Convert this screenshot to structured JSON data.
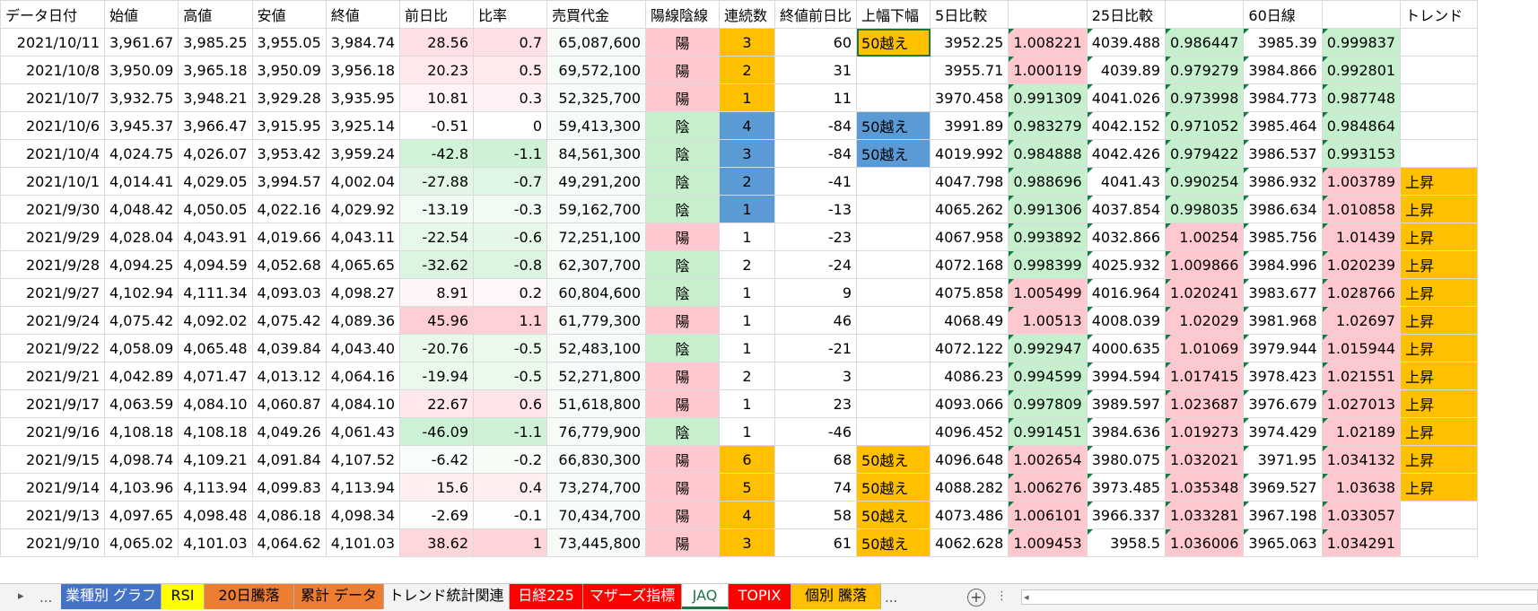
{
  "columns": [
    "データ日付",
    "始値",
    "高値",
    "安値",
    "終値",
    "前日比",
    "比率",
    "売買代金",
    "陽線陰線",
    "連続数",
    "終値前日比",
    "上幅下幅",
    "5日比較",
    "",
    "25日比較",
    "",
    "60日線",
    "",
    "トレンド"
  ],
  "rows": [
    {
      "date": "2021/10/11",
      "open": "3,961.67",
      "high": "3,985.25",
      "low": "3,955.05",
      "close": "3,984.74",
      "diff": "28.56",
      "ratio": "0.7",
      "value": "65,087,600",
      "yy": "陽",
      "streak": "3",
      "cdiff": "60",
      "range": "50越え",
      "d5": "3952.25",
      "r5": "1.008221",
      "d25": "4039.488",
      "r25": "0.986447",
      "d60": "3985.39",
      "r60": "0.999837",
      "trend": ""
    },
    {
      "date": "2021/10/8",
      "open": "3,950.09",
      "high": "3,965.18",
      "low": "3,950.09",
      "close": "3,956.18",
      "diff": "20.23",
      "ratio": "0.5",
      "value": "69,572,100",
      "yy": "陽",
      "streak": "2",
      "cdiff": "31",
      "range": "",
      "d5": "3955.71",
      "r5": "1.000119",
      "d25": "4039.89",
      "r25": "0.979279",
      "d60": "3984.866",
      "r60": "0.992801",
      "trend": ""
    },
    {
      "date": "2021/10/7",
      "open": "3,932.75",
      "high": "3,948.21",
      "low": "3,929.28",
      "close": "3,935.95",
      "diff": "10.81",
      "ratio": "0.3",
      "value": "52,325,700",
      "yy": "陽",
      "streak": "1",
      "cdiff": "11",
      "range": "",
      "d5": "3970.458",
      "r5": "0.991309",
      "d25": "4041.026",
      "r25": "0.973998",
      "d60": "3984.773",
      "r60": "0.987748",
      "trend": ""
    },
    {
      "date": "2021/10/6",
      "open": "3,945.37",
      "high": "3,966.47",
      "low": "3,915.95",
      "close": "3,925.14",
      "diff": "-0.51",
      "ratio": "0",
      "value": "59,413,300",
      "yy": "陰",
      "streak": "4",
      "cdiff": "-84",
      "range": "50越え",
      "d5": "3991.89",
      "r5": "0.983279",
      "d25": "4042.152",
      "r25": "0.971052",
      "d60": "3985.464",
      "r60": "0.984864",
      "trend": ""
    },
    {
      "date": "2021/10/4",
      "open": "4,024.75",
      "high": "4,026.07",
      "low": "3,953.42",
      "close": "3,959.24",
      "diff": "-42.8",
      "ratio": "-1.1",
      "value": "84,561,300",
      "yy": "陰",
      "streak": "3",
      "cdiff": "-84",
      "range": "50越え",
      "d5": "4019.992",
      "r5": "0.984888",
      "d25": "4042.426",
      "r25": "0.979422",
      "d60": "3986.537",
      "r60": "0.993153",
      "trend": ""
    },
    {
      "date": "2021/10/1",
      "open": "4,014.41",
      "high": "4,029.05",
      "low": "3,994.57",
      "close": "4,002.04",
      "diff": "-27.88",
      "ratio": "-0.7",
      "value": "49,291,200",
      "yy": "陰",
      "streak": "2",
      "cdiff": "-41",
      "range": "",
      "d5": "4047.798",
      "r5": "0.988696",
      "d25": "4041.43",
      "r25": "0.990254",
      "d60": "3986.932",
      "r60": "1.003789",
      "trend": "上昇"
    },
    {
      "date": "2021/9/30",
      "open": "4,048.42",
      "high": "4,050.05",
      "low": "4,022.16",
      "close": "4,029.92",
      "diff": "-13.19",
      "ratio": "-0.3",
      "value": "59,162,700",
      "yy": "陰",
      "streak": "1",
      "cdiff": "-13",
      "range": "",
      "d5": "4065.262",
      "r5": "0.991306",
      "d25": "4037.854",
      "r25": "0.998035",
      "d60": "3986.634",
      "r60": "1.010858",
      "trend": "上昇"
    },
    {
      "date": "2021/9/29",
      "open": "4,028.04",
      "high": "4,043.91",
      "low": "4,019.66",
      "close": "4,043.11",
      "diff": "-22.54",
      "ratio": "-0.6",
      "value": "72,251,100",
      "yy": "陽",
      "streak": "1",
      "cdiff": "-23",
      "range": "",
      "d5": "4067.958",
      "r5": "0.993892",
      "d25": "4032.866",
      "r25": "1.00254",
      "d60": "3985.756",
      "r60": "1.01439",
      "trend": "上昇"
    },
    {
      "date": "2021/9/28",
      "open": "4,094.25",
      "high": "4,094.59",
      "low": "4,052.68",
      "close": "4,065.65",
      "diff": "-32.62",
      "ratio": "-0.8",
      "value": "62,307,700",
      "yy": "陰",
      "streak": "2",
      "cdiff": "-24",
      "range": "",
      "d5": "4072.168",
      "r5": "0.998399",
      "d25": "4025.932",
      "r25": "1.009866",
      "d60": "3984.996",
      "r60": "1.020239",
      "trend": "上昇"
    },
    {
      "date": "2021/9/27",
      "open": "4,102.94",
      "high": "4,111.34",
      "low": "4,093.03",
      "close": "4,098.27",
      "diff": "8.91",
      "ratio": "0.2",
      "value": "60,804,600",
      "yy": "陰",
      "streak": "1",
      "cdiff": "9",
      "range": "",
      "d5": "4075.858",
      "r5": "1.005499",
      "d25": "4016.964",
      "r25": "1.020241",
      "d60": "3983.677",
      "r60": "1.028766",
      "trend": "上昇"
    },
    {
      "date": "2021/9/24",
      "open": "4,075.42",
      "high": "4,092.02",
      "low": "4,075.42",
      "close": "4,089.36",
      "diff": "45.96",
      "ratio": "1.1",
      "value": "61,779,300",
      "yy": "陽",
      "streak": "1",
      "cdiff": "46",
      "range": "",
      "d5": "4068.49",
      "r5": "1.00513",
      "d25": "4008.039",
      "r25": "1.02029",
      "d60": "3981.968",
      "r60": "1.02697",
      "trend": "上昇"
    },
    {
      "date": "2021/9/22",
      "open": "4,058.09",
      "high": "4,065.48",
      "low": "4,039.84",
      "close": "4,043.40",
      "diff": "-20.76",
      "ratio": "-0.5",
      "value": "52,483,100",
      "yy": "陰",
      "streak": "1",
      "cdiff": "-21",
      "range": "",
      "d5": "4072.122",
      "r5": "0.992947",
      "d25": "4000.635",
      "r25": "1.01069",
      "d60": "3979.944",
      "r60": "1.015944",
      "trend": "上昇"
    },
    {
      "date": "2021/9/21",
      "open": "4,042.89",
      "high": "4,071.47",
      "low": "4,013.12",
      "close": "4,064.16",
      "diff": "-19.94",
      "ratio": "-0.5",
      "value": "52,271,800",
      "yy": "陽",
      "streak": "2",
      "cdiff": "3",
      "range": "",
      "d5": "4086.23",
      "r5": "0.994599",
      "d25": "3994.594",
      "r25": "1.017415",
      "d60": "3978.423",
      "r60": "1.021551",
      "trend": "上昇"
    },
    {
      "date": "2021/9/17",
      "open": "4,063.59",
      "high": "4,084.10",
      "low": "4,060.87",
      "close": "4,084.10",
      "diff": "22.67",
      "ratio": "0.6",
      "value": "51,618,800",
      "yy": "陽",
      "streak": "1",
      "cdiff": "23",
      "range": "",
      "d5": "4093.066",
      "r5": "0.997809",
      "d25": "3989.597",
      "r25": "1.023687",
      "d60": "3976.679",
      "r60": "1.027013",
      "trend": "上昇"
    },
    {
      "date": "2021/9/16",
      "open": "4,108.18",
      "high": "4,108.18",
      "low": "4,049.26",
      "close": "4,061.43",
      "diff": "-46.09",
      "ratio": "-1.1",
      "value": "76,779,900",
      "yy": "陰",
      "streak": "1",
      "cdiff": "-46",
      "range": "",
      "d5": "4096.452",
      "r5": "0.991451",
      "d25": "3984.636",
      "r25": "1.019273",
      "d60": "3974.429",
      "r60": "1.02189",
      "trend": "上昇"
    },
    {
      "date": "2021/9/15",
      "open": "4,098.74",
      "high": "4,109.21",
      "low": "4,091.84",
      "close": "4,107.52",
      "diff": "-6.42",
      "ratio": "-0.2",
      "value": "66,830,300",
      "yy": "陽",
      "streak": "6",
      "cdiff": "68",
      "range": "50越え",
      "d5": "4096.648",
      "r5": "1.002654",
      "d25": "3980.075",
      "r25": "1.032021",
      "d60": "3971.95",
      "r60": "1.034132",
      "trend": "上昇"
    },
    {
      "date": "2021/9/14",
      "open": "4,103.96",
      "high": "4,113.94",
      "low": "4,099.83",
      "close": "4,113.94",
      "diff": "15.6",
      "ratio": "0.4",
      "value": "73,274,700",
      "yy": "陽",
      "streak": "5",
      "cdiff": "74",
      "range": "50越え",
      "d5": "4088.282",
      "r5": "1.006276",
      "d25": "3973.485",
      "r25": "1.035348",
      "d60": "3969.527",
      "r60": "1.03638",
      "trend": "上昇"
    },
    {
      "date": "2021/9/13",
      "open": "4,097.65",
      "high": "4,098.48",
      "low": "4,086.18",
      "close": "4,098.34",
      "diff": "-2.69",
      "ratio": "-0.1",
      "value": "70,434,700",
      "yy": "陽",
      "streak": "4",
      "cdiff": "58",
      "range": "50越え",
      "d5": "4073.486",
      "r5": "1.006101",
      "d25": "3966.337",
      "r25": "1.033281",
      "d60": "3967.198",
      "r60": "1.033057",
      "trend": ""
    },
    {
      "date": "2021/9/10",
      "open": "4,065.02",
      "high": "4,101.03",
      "low": "4,064.62",
      "close": "4,101.03",
      "diff": "38.62",
      "ratio": "1",
      "value": "73,445,800",
      "yy": "陽",
      "streak": "3",
      "cdiff": "61",
      "range": "50越え",
      "d5": "4062.628",
      "r5": "1.009453",
      "d25": "3958.5",
      "r25": "1.036006",
      "d60": "3965.063",
      "r60": "1.034291",
      "trend": ""
    }
  ],
  "tabs": [
    {
      "label": "業種別 グラフ",
      "bg": "#4472c4",
      "color": "#ffffff"
    },
    {
      "label": "RSI",
      "bg": "#ffff00",
      "color": "#000000"
    },
    {
      "label": "20日騰落",
      "bg": "#ed7d31",
      "color": "#000000"
    },
    {
      "label": "累計 データ",
      "bg": "#ed7d31",
      "color": "#000000"
    },
    {
      "label": "トレンド統計関連",
      "bg": "#f3f3f3",
      "color": "#000000"
    },
    {
      "label": "日経225",
      "bg": "#ff0000",
      "color": "#ffffff"
    },
    {
      "label": "マザーズ指標",
      "bg": "#ff0000",
      "color": "#ffffff"
    },
    {
      "label": "JAQ",
      "bg": "#ffffff",
      "color": "#217346"
    },
    {
      "label": "TOPIX",
      "bg": "#ff0000",
      "color": "#ffffff"
    },
    {
      "label": "個別 騰落",
      "bg": "#ffc000",
      "color": "#000000"
    }
  ],
  "tabbar": {
    "ellipsis_left": "...",
    "ellipsis_right": "...",
    "add": "+",
    "nav_next": "▸",
    "scroll_left": "◂",
    "more": "⋮"
  }
}
